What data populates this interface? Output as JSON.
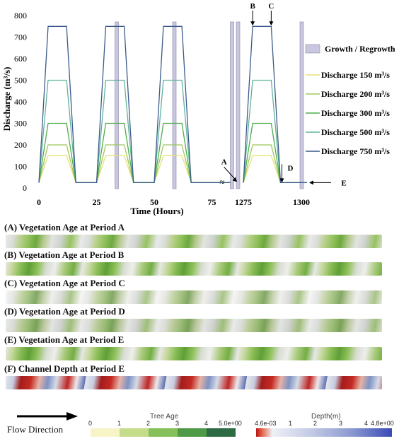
{
  "chart_data": {
    "type": "line",
    "xlabel": "Time (Hours)",
    "ylabel": "Discharge (m³/s)",
    "ylim": [
      0,
      800
    ],
    "yticks": [
      0,
      100,
      200,
      300,
      400,
      500,
      600,
      700,
      800
    ],
    "xticks": [
      "0",
      "25",
      "50",
      "75",
      "1275",
      "1300"
    ],
    "axis_break_symbol": "≈",
    "legend_position": "right",
    "growth_label": "Growth / Regrowth",
    "growth_color": "#c9c6e0",
    "series": [
      {
        "name": "Discharge 150 m³/s",
        "peak": 150,
        "color": "#e6e27a"
      },
      {
        "name": "Discharge 200 m³/s",
        "peak": 200,
        "color": "#9dc85a"
      },
      {
        "name": "Discharge 300 m³/s",
        "peak": 300,
        "color": "#4fab4a"
      },
      {
        "name": "Discharge 500 m³/s",
        "peak": 500,
        "color": "#5fb39a"
      },
      {
        "name": "Discharge 750 m³/s",
        "peak": 750,
        "color": "#3b5a8c"
      }
    ],
    "base_discharge": 25,
    "hydrograph_time_points": [
      0,
      4,
      12,
      16,
      25
    ],
    "flood_cycles": [
      {
        "start": 0
      },
      {
        "start": 25
      },
      {
        "start": 50
      },
      {
        "start": 1275
      }
    ],
    "growth_periods": [
      25,
      50,
      75,
      1275,
      1300
    ],
    "annotations": [
      {
        "label": "A",
        "time": 1274,
        "value": 25
      },
      {
        "label": "B",
        "time": 1279,
        "value": 750
      },
      {
        "label": "C",
        "time": 1287,
        "value": 750
      },
      {
        "label": "D",
        "time": 1291,
        "value": 25
      },
      {
        "label": "E",
        "time": 1300,
        "value": 25
      }
    ]
  },
  "panels": [
    {
      "title": "(A) Vegetation Age at Period A"
    },
    {
      "title": "(B) Vegetation Age at Period B"
    },
    {
      "title": "(C) Vegetation Age at Period C"
    },
    {
      "title": "(D) Vegetation Age at Period D"
    },
    {
      "title": "(E) Vegetation Age at Period E"
    },
    {
      "title": "(F) Channel Depth at Period E"
    }
  ],
  "flow_label": "Flow Direction",
  "tree_age_bar": {
    "title": "Tree Age",
    "ticks": [
      "0",
      "1",
      "2",
      "3",
      "4",
      "5.0e+00"
    ],
    "colors": [
      "#f7f4c8",
      "#c5dc8a",
      "#86c05a",
      "#4f9a47",
      "#2e6b45"
    ]
  },
  "depth_bar": {
    "title": "Depth(m)",
    "ticks": [
      "4.6e-03",
      "1",
      "2",
      "3",
      "4",
      "4.8e+00"
    ]
  }
}
